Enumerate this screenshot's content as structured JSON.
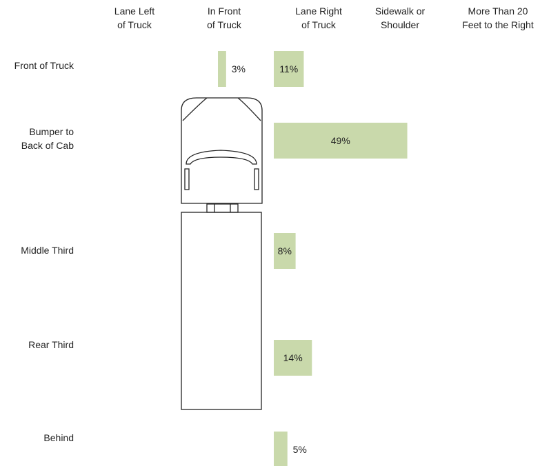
{
  "chart_data": {
    "type": "bar",
    "categories": [
      "Front of Truck",
      "Bumper to\nBack of Cab",
      "Middle Third",
      "Rear Third",
      "Behind"
    ],
    "series": [
      {
        "name": "Lane Left\nof Truck",
        "color": "#c9d9ab",
        "values": [
          null,
          null,
          null,
          null,
          null
        ]
      },
      {
        "name": "In Front\nof Truck",
        "color": "#c9d9ab",
        "values": [
          3,
          null,
          null,
          null,
          null
        ],
        "value_labels": [
          "3%",
          null,
          null,
          null,
          null
        ]
      },
      {
        "name": "Lane Right\nof Truck",
        "color": "#c9d9ab",
        "values": [
          11,
          49,
          8,
          14,
          5
        ],
        "value_labels": [
          "11%",
          "49%",
          "8%",
          "14%",
          "5%"
        ]
      },
      {
        "name": "Sidewalk or\nShoulder",
        "color": "#c9d9ab",
        "values": [
          null,
          null,
          null,
          null,
          null
        ]
      },
      {
        "name": "More Than 20\nFeet to the Right",
        "color": "#c9d9ab",
        "values": [
          null,
          null,
          null,
          null,
          null
        ]
      }
    ]
  }
}
